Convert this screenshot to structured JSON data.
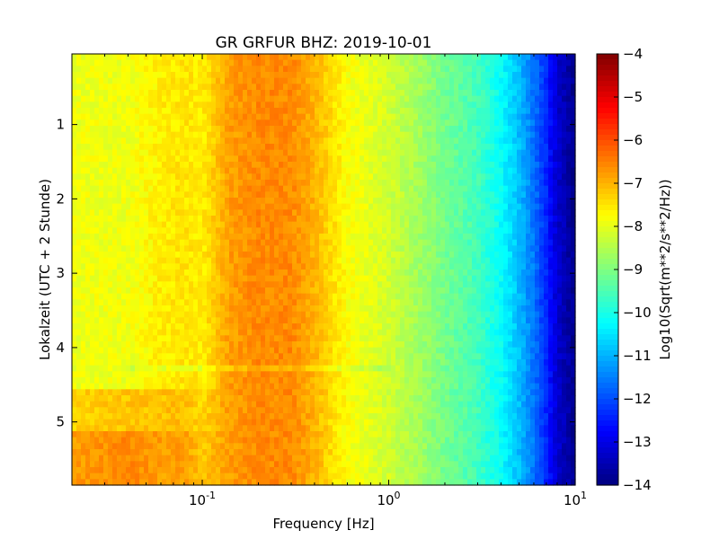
{
  "chart_data": {
    "type": "heatmap",
    "title": "GR GRFUR BHZ: 2019-10-01",
    "xlabel": "Frequency [Hz]",
    "ylabel": "Lokalzeit (UTC + 2 Stunde)",
    "x_scale": "log",
    "xlim": [
      0.02,
      10
    ],
    "x_ticks": [
      {
        "value": 0.1,
        "base": "10",
        "exp": "-1"
      },
      {
        "value": 1,
        "base": "10",
        "exp": "0"
      },
      {
        "value": 10,
        "base": "10",
        "exp": "1"
      }
    ],
    "ylim": [
      0.05,
      5.85
    ],
    "y_inverted": true,
    "y_ticks": [
      {
        "value": 1,
        "label": "1"
      },
      {
        "value": 2,
        "label": "2"
      },
      {
        "value": 3,
        "label": "3"
      },
      {
        "value": 4,
        "label": "4"
      },
      {
        "value": 5,
        "label": "5"
      }
    ],
    "colorbar": {
      "label": "Log10(Sqrt(m**2/s**2/Hz))",
      "colormap": "jet",
      "range": [
        -14,
        -4
      ],
      "ticks": [
        {
          "value": -4,
          "label": "−4"
        },
        {
          "value": -5,
          "label": "−5"
        },
        {
          "value": -6,
          "label": "−6"
        },
        {
          "value": -7,
          "label": "−7"
        },
        {
          "value": -8,
          "label": "−8"
        },
        {
          "value": -9,
          "label": "−9"
        },
        {
          "value": -10,
          "label": "−10"
        },
        {
          "value": -11,
          "label": "−11"
        },
        {
          "value": -12,
          "label": "−12"
        },
        {
          "value": -13,
          "label": "−13"
        },
        {
          "value": -14,
          "label": "−14"
        }
      ]
    },
    "spectrum_profile": {
      "frequency_hz": [
        0.02,
        0.04,
        0.06,
        0.08,
        0.1,
        0.14,
        0.2,
        0.3,
        0.4,
        0.6,
        1.0,
        1.5,
        2.0,
        3.0,
        4.0,
        5.0,
        6.0,
        7.0,
        8.0,
        10.0
      ],
      "value_early": [
        -7.9,
        -7.9,
        -7.6,
        -7.5,
        -7.6,
        -6.8,
        -6.6,
        -6.6,
        -7.0,
        -7.8,
        -8.2,
        -8.7,
        -9.1,
        -9.6,
        -10.2,
        -10.9,
        -11.6,
        -12.4,
        -13.2,
        -13.9
      ],
      "value_late": [
        -6.8,
        -6.6,
        -6.8,
        -6.8,
        -7.2,
        -6.8,
        -6.6,
        -6.6,
        -7.0,
        -7.8,
        -8.2,
        -8.7,
        -9.1,
        -9.6,
        -10.2,
        -10.9,
        -11.6,
        -12.4,
        -13.2,
        -13.9
      ]
    }
  }
}
